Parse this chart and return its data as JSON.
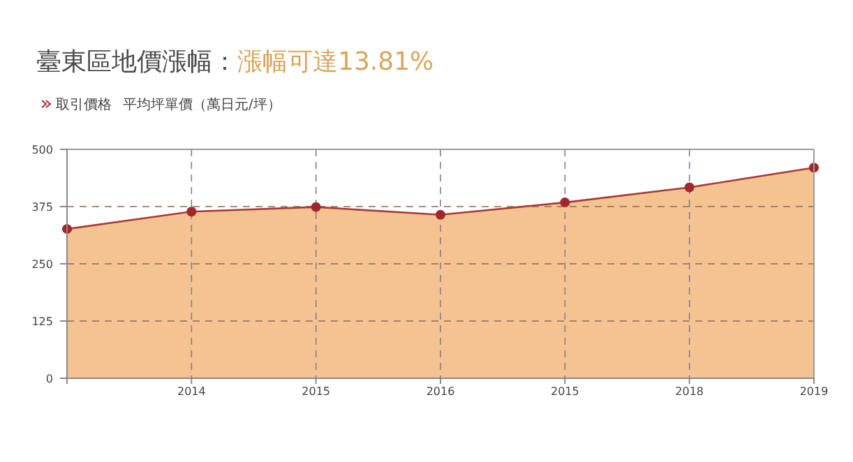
{
  "chart_data": {
    "type": "area",
    "title": "臺東區地價漲幅：",
    "subtitle": "漲幅可達13.81%",
    "ylabel": "平均坪單價（萬日元/坪）",
    "categories": [
      null,
      "2014",
      "2015",
      "2016",
      "2015",
      "2018",
      "2019"
    ],
    "series": [
      {
        "name": "取引價格",
        "color": "#f5c391",
        "values": [
          326,
          364,
          374,
          357,
          384,
          417,
          460
        ]
      }
    ],
    "ylim": [
      0,
      500
    ],
    "yticks": [
      0,
      125,
      250,
      375,
      500
    ],
    "grid": true,
    "legend": "top left",
    "marker": "circle",
    "line_style": "solid"
  }
}
